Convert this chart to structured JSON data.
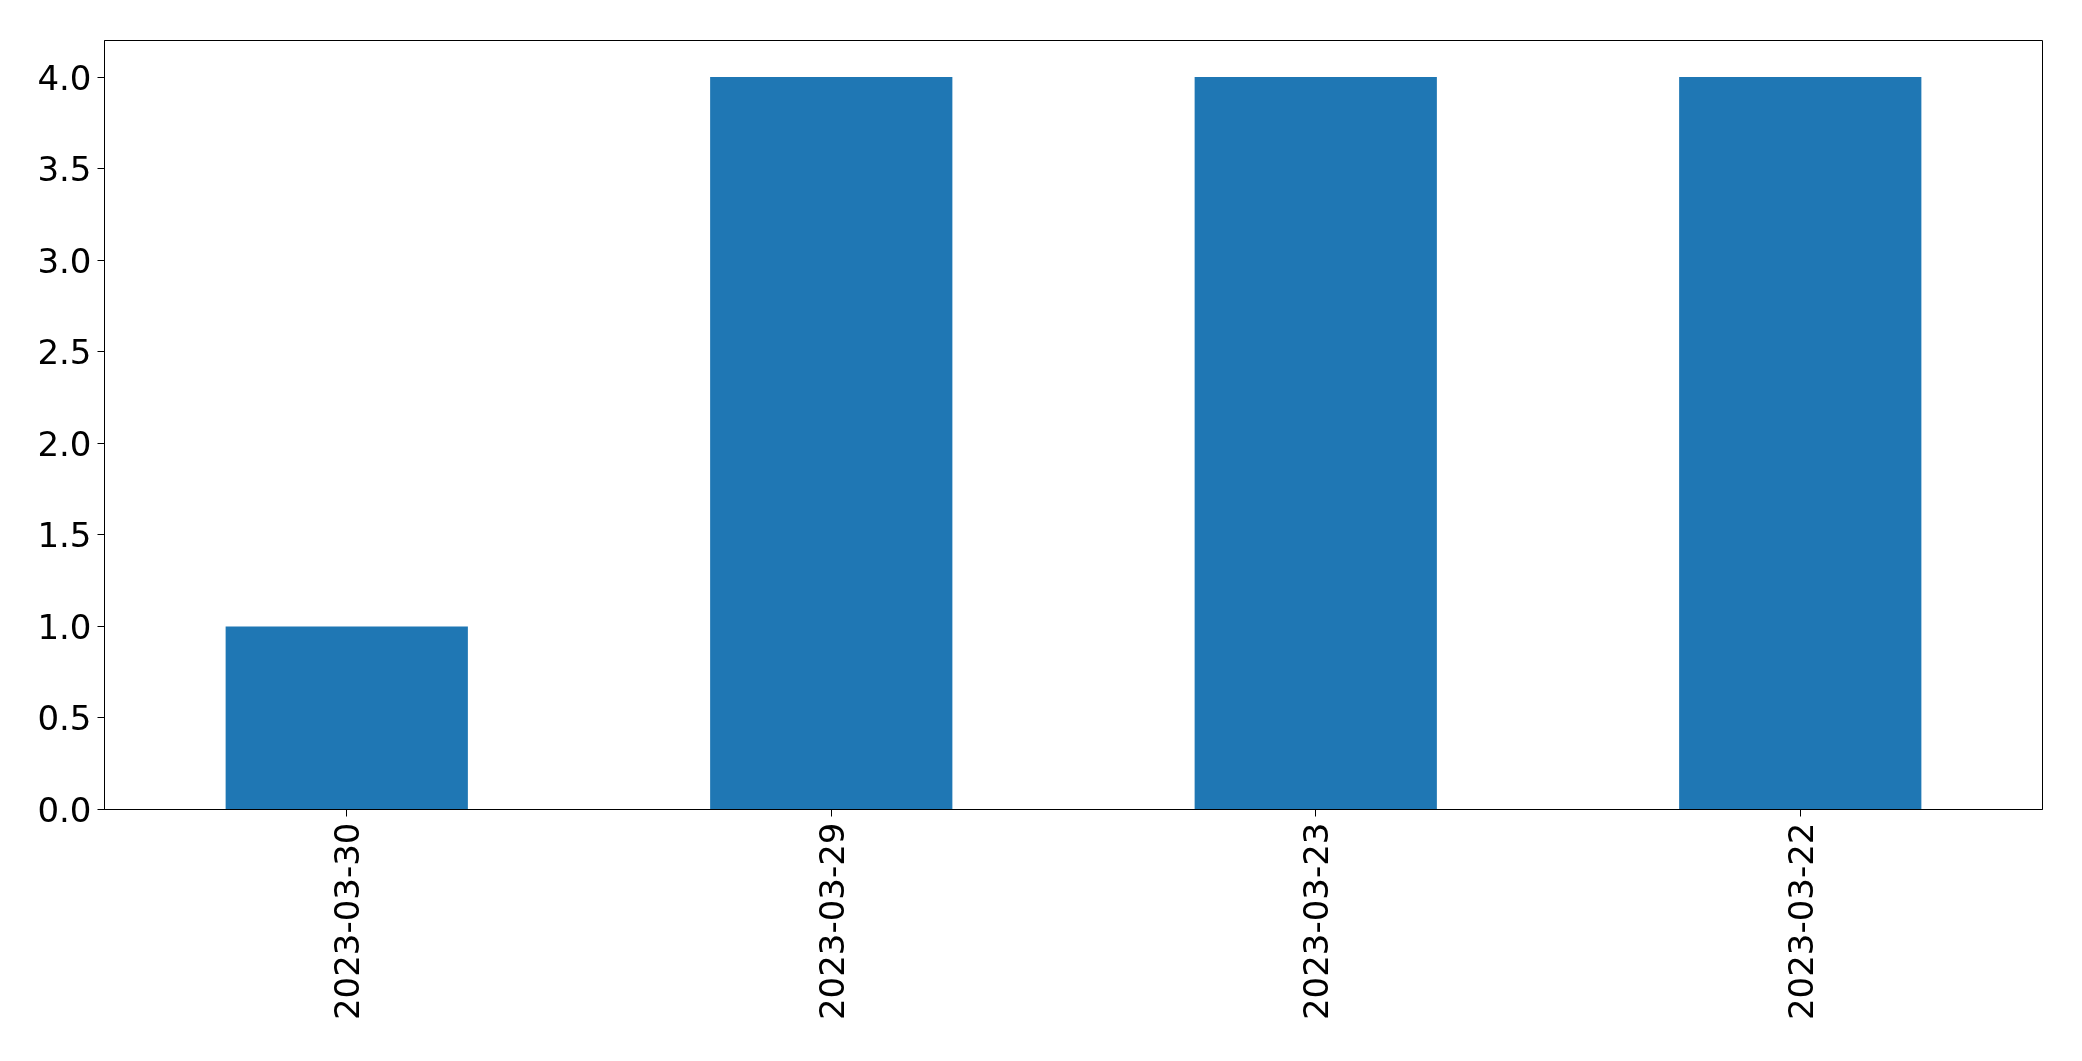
{
  "chart_data": {
    "type": "bar",
    "categories": [
      "2023-03-30",
      "2023-03-29",
      "2023-03-23",
      "2023-03-22"
    ],
    "values": [
      1,
      4,
      4,
      4
    ],
    "color": "#1f77b4",
    "ylim": [
      0,
      4.2
    ],
    "yticks": [
      {
        "value": 0,
        "label": "0.0"
      },
      0.5,
      {
        "value": 1,
        "label": "1.0"
      },
      1.5,
      {
        "value": 2,
        "label": "2.0"
      },
      2.5,
      {
        "value": 3,
        "label": "3.0"
      },
      3.5,
      {
        "value": 4,
        "label": "4.0"
      }
    ]
  }
}
